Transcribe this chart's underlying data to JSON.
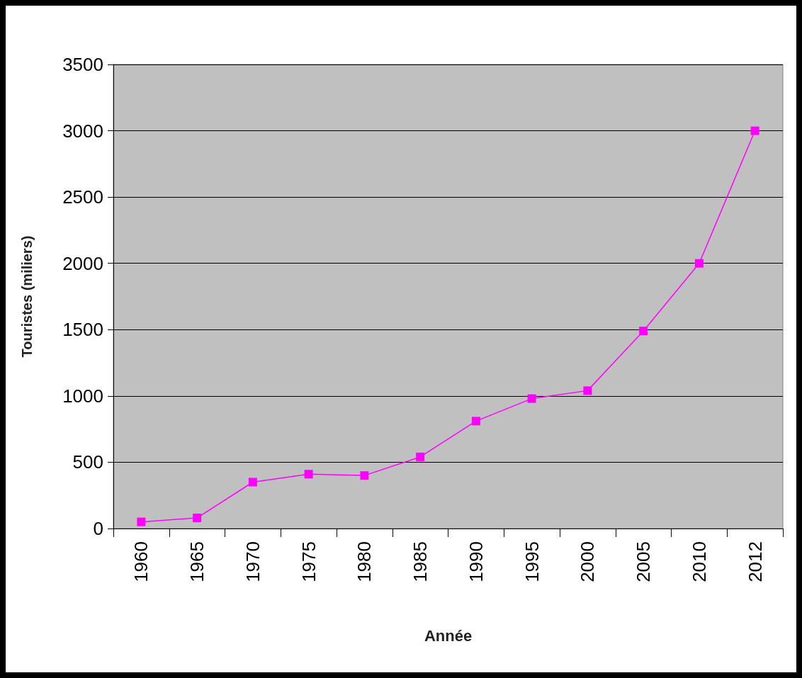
{
  "chart_data": {
    "type": "line",
    "xlabel": "Année",
    "ylabel": "Touristes (miliers)",
    "categories": [
      "1960",
      "1965",
      "1970",
      "1975",
      "1980",
      "1985",
      "1990",
      "1995",
      "2000",
      "2005",
      "2010",
      "2012"
    ],
    "series": [
      {
        "color": "#ff00ff",
        "values": [
          50,
          80,
          350,
          410,
          400,
          540,
          810,
          980,
          1040,
          1490,
          2000,
          3000
        ]
      }
    ],
    "ylim": [
      0,
      3500
    ],
    "yticks": [
      0,
      500,
      1000,
      1500,
      2000,
      2500,
      3000,
      3500
    ],
    "grid": "y",
    "marker": "square",
    "line_style": "solid"
  }
}
